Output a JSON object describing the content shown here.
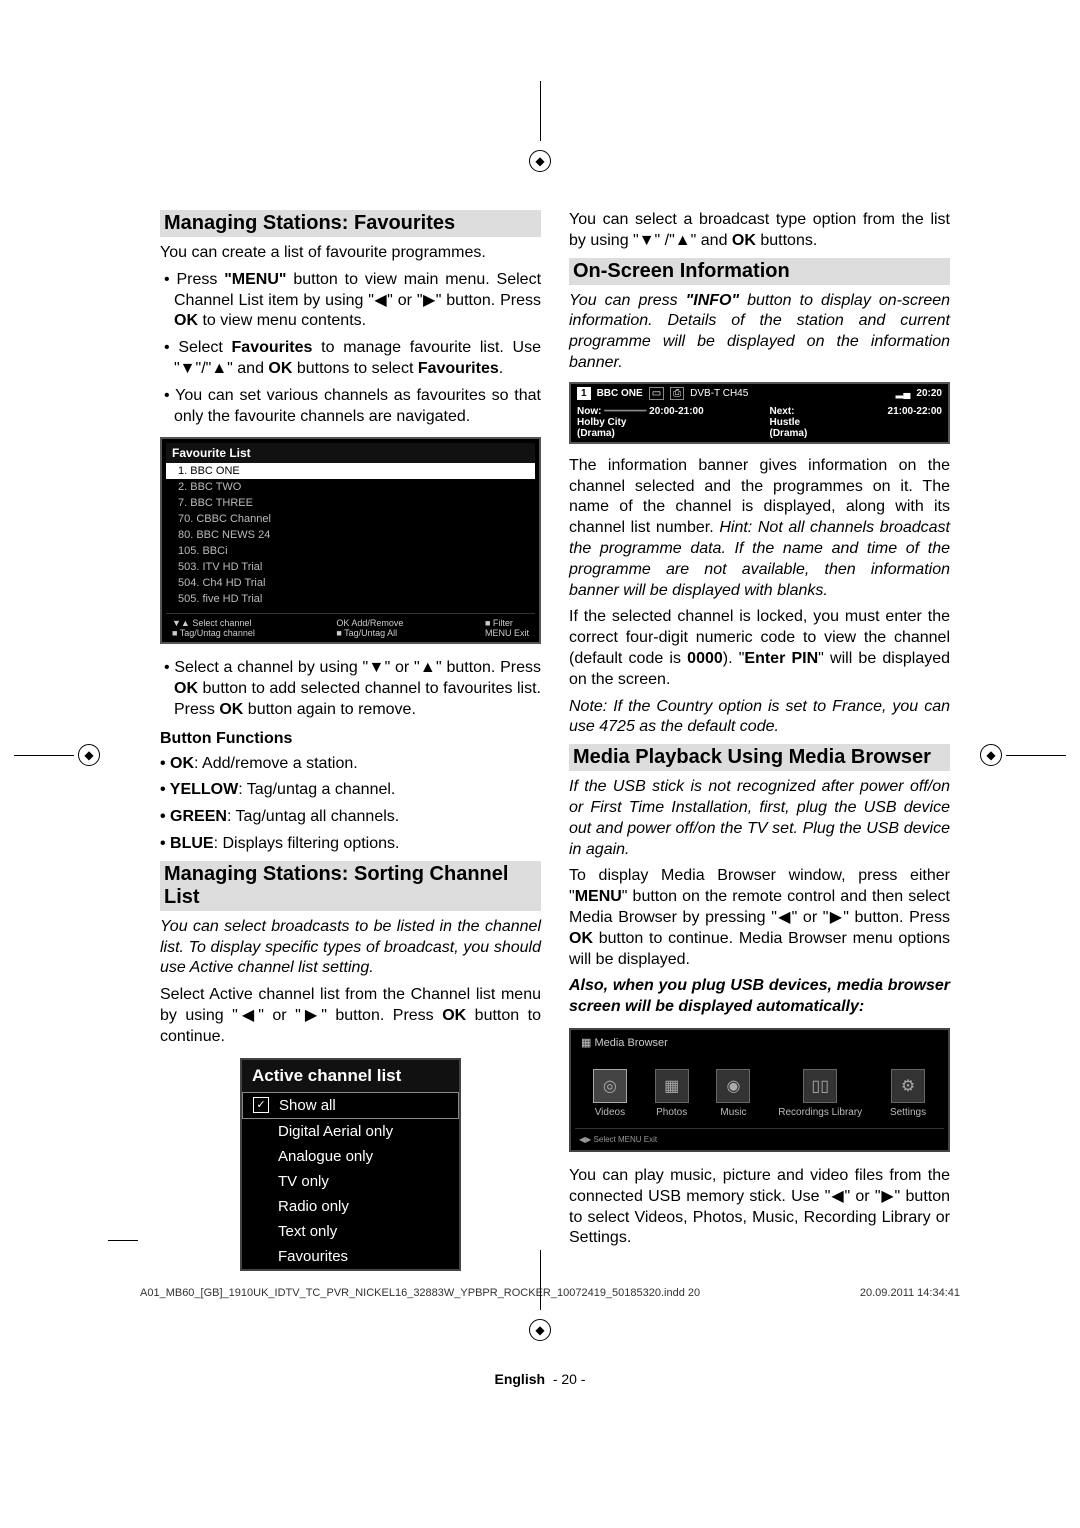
{
  "sections": {
    "favourites_title": "Managing Stations: Favourites",
    "sorting_title": "Managing Stations: Sorting Channel List",
    "onscreen_title": "On-Screen Information",
    "media_title": "Media Playback Using Media Browser"
  },
  "p": {
    "fav_intro": "You can create a list of favourite programmes.",
    "fav_b1a": "Press ",
    "fav_b1b": "\"MENU\"",
    "fav_b1c": " button to view main menu. Select Channel List item by using \"◀\" or \"▶\" button. Press ",
    "fav_b1d": "OK",
    "fav_b1e": " to view menu contents.",
    "fav_b2a": "Select ",
    "fav_b2b": "Favourites",
    "fav_b2c": " to manage favourite list. Use \"▼\"/\"▲\" and ",
    "fav_b2d": "OK",
    "fav_b2e": " buttons to select ",
    "fav_b2f": "Favourites",
    "fav_b2g": ".",
    "fav_b3": "You can set various channels as favourites so that only the favourite channels are navigated.",
    "fav_b4a": "Select a channel by using \"▼\" or \"▲\" button. Press ",
    "fav_b4b": "OK",
    "fav_b4c": " button to add selected channel to favourites list. Press ",
    "fav_b4d": "OK",
    "fav_b4e": " button again to remove.",
    "btn_title": "Button Functions",
    "btn_ok": "OK",
    "btn_ok_t": ": Add/remove a station.",
    "btn_y": "YELLOW",
    "btn_y_t": ": Tag/untag a channel.",
    "btn_g": "GREEN",
    "btn_g_t": ": Tag/untag all channels.",
    "btn_b": "BLUE",
    "btn_b_t": ": Displays filtering options.",
    "sort_p1": "You can select broadcasts to be listed in the channel list. To display specific types of broadcast, you should use Active channel list setting.",
    "sort_p2a": "Select Active channel list from the Channel list menu by using \"◀\" or \"▶\" button. Press ",
    "sort_p2b": "OK",
    "sort_p2c": " button to continue.",
    "sort_p3a": "You can select a broadcast type option from the list by using \"▼\" /\"▲\" and ",
    "sort_p3b": "OK",
    "sort_p3c": " buttons.",
    "os_p1a": "You can press ",
    "os_p1b": "\"INFO\"",
    "os_p1c": " button to display on-screen information. Details of the station and current programme will be displayed on the information banner.",
    "os_p2a": "The information banner gives information on the channel selected and the programmes on it. The name of the channel is displayed, along with its channel list number. ",
    "os_p2b": "Hint: Not all channels broadcast the programme data. If the name and time of the programme are not available, then information banner will be displayed with blanks.",
    "os_p3a": "If the selected channel is locked, you must enter the correct four-digit numeric code to view the channel (default code is ",
    "os_p3b": "0000",
    "os_p3c": "). \"",
    "os_p3d": "Enter PIN",
    "os_p3e": "\" will be displayed on the screen.",
    "os_note": "Note: If the Country option is set to France, you can use 4725 as the default code.",
    "mb_p1": "If the USB stick is not recognized after power off/on or First Time Installation, first, plug the USB device out and power off/on the TV set. Plug the USB device in again.",
    "mb_p2a": "To display Media Browser window, press either \"",
    "mb_p2b": "MENU",
    "mb_p2c": "\" button on the remote control and then select Media Browser by pressing \"◀\" or \"▶\" button. Press ",
    "mb_p2d": "OK",
    "mb_p2e": " button to continue. Media Browser menu options will be displayed.",
    "mb_p3": "Also, when you plug USB devices, media browser screen will be displayed automatically:",
    "mb_p4": "You can play music, picture and video files from the connected USB memory stick. Use \"◀\" or \"▶\" button to select Videos, Photos, Music, Recording Library or Settings."
  },
  "favlist": {
    "title": "Favourite List",
    "rows": [
      "1. BBC ONE",
      "2. BBC TWO",
      "7. BBC THREE",
      "70. CBBC Channel",
      "80. BBC NEWS 24",
      "105. BBCi",
      "503. ITV HD Trial",
      "504. Ch4 HD Trial",
      "505. five HD Trial"
    ],
    "foot_l1": "▼▲ Select channel",
    "foot_l2": "■ Tag/Untag channel",
    "foot_m1": "OK Add/Remove",
    "foot_m2": "■ Tag/Untag All",
    "foot_r1": "■ Filter",
    "foot_r2": "MENU Exit"
  },
  "active": {
    "title": "Active channel list",
    "rows": [
      "Show all",
      "Digital Aerial only",
      "Analogue only",
      "TV only",
      "Radio only",
      "Text only",
      "Favourites"
    ]
  },
  "infobar": {
    "ch": "1",
    "name": "BBC ONE",
    "dvb": "DVB-T  CH45",
    "time": "20:20",
    "now": "Now:",
    "now_t": "Holby City",
    "now_g": "(Drama)",
    "now_time": "20:00-21:00",
    "next": "Next:",
    "next_t": "Hustle",
    "next_g": "(Drama)",
    "next_time": "21:00-22:00"
  },
  "media": {
    "title": "Media Browser",
    "items": [
      "Videos",
      "Photos",
      "Music",
      "Recordings Library",
      "Settings"
    ],
    "foot": "◀▶ Select  MENU Exit"
  },
  "footer": {
    "lang": "English",
    "page": "- 20 -",
    "file": "A01_MB60_[GB]_1910UK_IDTV_TC_PVR_NICKEL16_32883W_YPBPR_ROCKER_10072419_50185320.indd   20",
    "ts": "20.09.2011   14:34:41"
  }
}
